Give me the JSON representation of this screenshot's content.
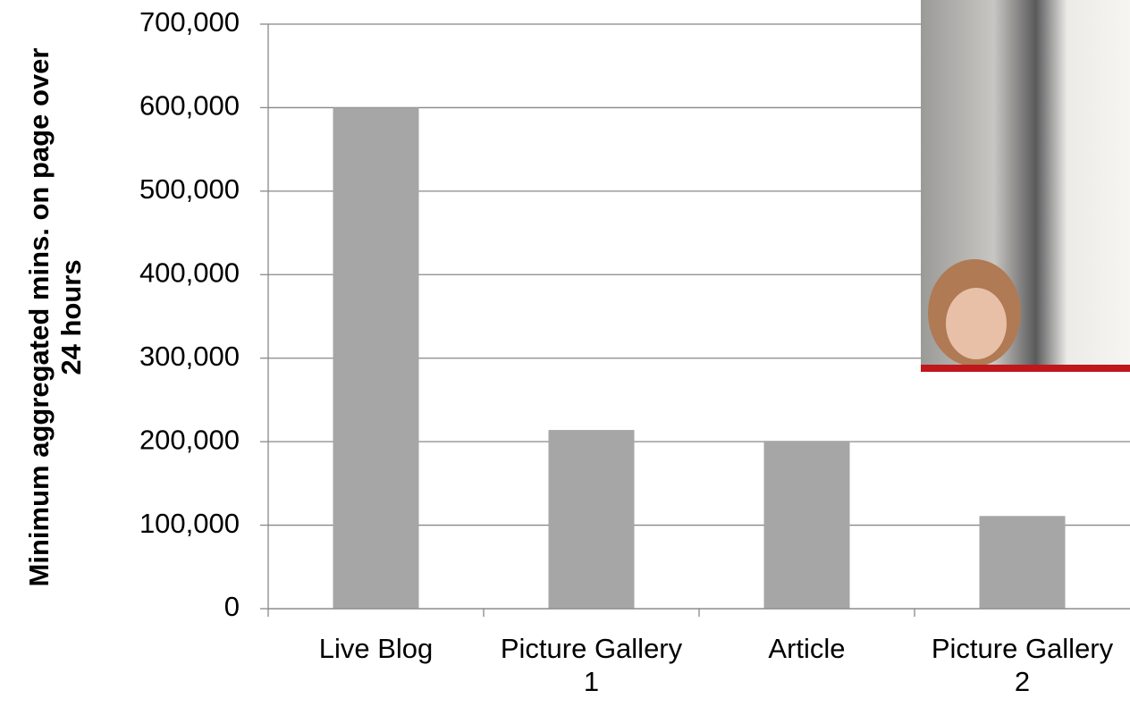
{
  "chart_data": {
    "type": "bar",
    "y_axis_title": "Minimum aggregated mins. on page over 24 hours",
    "categories": [
      "Live Blog",
      "Picture Gallery 1",
      "Article",
      "Picture Gallery 2"
    ],
    "values": [
      600000,
      214000,
      201000,
      111000
    ],
    "color": "#a6a6a6",
    "ylim": [
      0,
      700000
    ],
    "yticks": [
      0,
      {
        "value": 100000,
        "label": "100,000"
      },
      {
        "value": 200000,
        "label": "200,000"
      },
      {
        "value": 300000,
        "label": "300,000"
      },
      {
        "value": 400000,
        "label": "400,000"
      },
      {
        "value": 500000,
        "label": "500,000"
      },
      {
        "value": 600000,
        "label": "600,000"
      },
      {
        "value": 700000,
        "label": "700,000"
      }
    ],
    "grid": true
  }
}
